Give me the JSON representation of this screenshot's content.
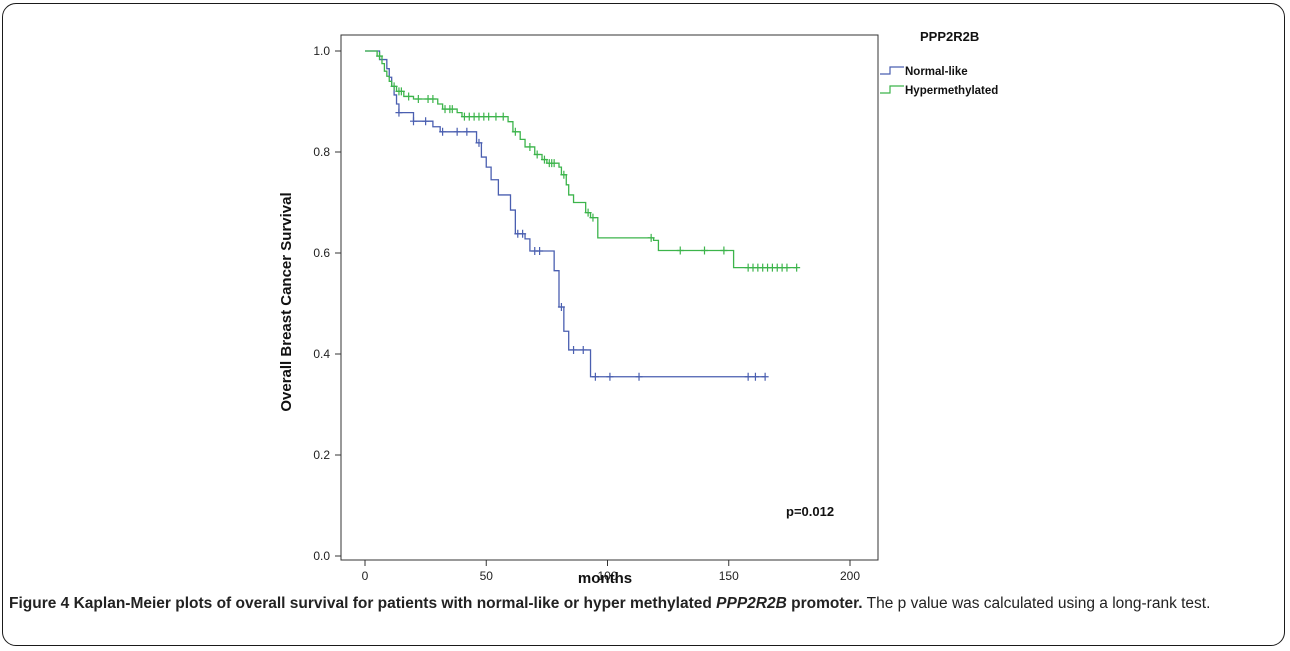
{
  "chart_data": {
    "type": "line",
    "subtype": "kaplan-meier step",
    "title": "",
    "xlabel": "months",
    "ylabel": "Overall Breast Cancer Survival",
    "xlim": [
      0,
      200
    ],
    "ylim": [
      0.0,
      1.0
    ],
    "xticks": [
      "0",
      "50",
      "100",
      "150",
      "200"
    ],
    "yticks": [
      "0.0",
      "0.2",
      "0.4",
      "0.6",
      "0.8",
      "1.0"
    ],
    "grid": false,
    "legend": {
      "title": "PPP2R2B",
      "placement": "top-right outside plot"
    },
    "annotation": "p=0.012",
    "series": [
      {
        "name": "Normal-like",
        "color": "#4a5fb0",
        "steps": [
          [
            0,
            1.0
          ],
          [
            6,
            0.983
          ],
          [
            9,
            0.965
          ],
          [
            10,
            0.948
          ],
          [
            11,
            0.93
          ],
          [
            12,
            0.913
          ],
          [
            13,
            0.895
          ],
          [
            14,
            0.878
          ],
          [
            20,
            0.861
          ],
          [
            28,
            0.85
          ],
          [
            31,
            0.84
          ],
          [
            46,
            0.818
          ],
          [
            48,
            0.79
          ],
          [
            50,
            0.77
          ],
          [
            52,
            0.745
          ],
          [
            55,
            0.715
          ],
          [
            60,
            0.685
          ],
          [
            62,
            0.638
          ],
          [
            66,
            0.628
          ],
          [
            68,
            0.604
          ],
          [
            78,
            0.565
          ],
          [
            80,
            0.493
          ],
          [
            82,
            0.445
          ],
          [
            84,
            0.408
          ],
          [
            93,
            0.355
          ]
        ],
        "end_x": 165,
        "censored": [
          [
            14,
            0.878
          ],
          [
            20,
            0.861
          ],
          [
            25,
            0.861
          ],
          [
            32,
            0.84
          ],
          [
            38,
            0.84
          ],
          [
            42,
            0.84
          ],
          [
            47,
            0.818
          ],
          [
            63,
            0.638
          ],
          [
            65,
            0.638
          ],
          [
            70,
            0.604
          ],
          [
            72,
            0.604
          ],
          [
            81,
            0.493
          ],
          [
            86,
            0.408
          ],
          [
            90,
            0.408
          ],
          [
            95,
            0.355
          ],
          [
            101,
            0.355
          ],
          [
            113,
            0.355
          ],
          [
            158,
            0.355
          ],
          [
            161,
            0.355
          ],
          [
            165,
            0.355
          ]
        ]
      },
      {
        "name": "Hypermethylated",
        "color": "#3cb44b",
        "steps": [
          [
            0,
            1.0
          ],
          [
            5,
            0.99
          ],
          [
            7,
            0.975
          ],
          [
            8,
            0.96
          ],
          [
            9,
            0.95
          ],
          [
            10,
            0.94
          ],
          [
            11,
            0.93
          ],
          [
            13,
            0.92
          ],
          [
            16,
            0.91
          ],
          [
            20,
            0.905
          ],
          [
            30,
            0.895
          ],
          [
            32,
            0.885
          ],
          [
            38,
            0.878
          ],
          [
            40,
            0.87
          ],
          [
            59,
            0.86
          ],
          [
            61,
            0.84
          ],
          [
            64,
            0.825
          ],
          [
            66,
            0.81
          ],
          [
            70,
            0.795
          ],
          [
            73,
            0.785
          ],
          [
            75,
            0.778
          ],
          [
            80,
            0.77
          ],
          [
            81,
            0.755
          ],
          [
            83,
            0.735
          ],
          [
            84,
            0.715
          ],
          [
            86,
            0.7
          ],
          [
            91,
            0.68
          ],
          [
            93,
            0.67
          ],
          [
            96,
            0.63
          ],
          [
            119,
            0.625
          ],
          [
            121,
            0.605
          ],
          [
            152,
            0.571
          ]
        ],
        "end_x": 178,
        "censored": [
          [
            6,
            0.99
          ],
          [
            12,
            0.93
          ],
          [
            14,
            0.92
          ],
          [
            15,
            0.92
          ],
          [
            18,
            0.91
          ],
          [
            22,
            0.905
          ],
          [
            26,
            0.905
          ],
          [
            28,
            0.905
          ],
          [
            33,
            0.885
          ],
          [
            35,
            0.885
          ],
          [
            36,
            0.885
          ],
          [
            41,
            0.87
          ],
          [
            43,
            0.87
          ],
          [
            45,
            0.87
          ],
          [
            47,
            0.87
          ],
          [
            49,
            0.87
          ],
          [
            51,
            0.87
          ],
          [
            54,
            0.87
          ],
          [
            57,
            0.87
          ],
          [
            62,
            0.84
          ],
          [
            68,
            0.81
          ],
          [
            71,
            0.795
          ],
          [
            74,
            0.785
          ],
          [
            76,
            0.778
          ],
          [
            77,
            0.778
          ],
          [
            78,
            0.778
          ],
          [
            82,
            0.755
          ],
          [
            92,
            0.68
          ],
          [
            94,
            0.67
          ],
          [
            118,
            0.63
          ],
          [
            130,
            0.605
          ],
          [
            140,
            0.605
          ],
          [
            148,
            0.605
          ],
          [
            158,
            0.571
          ],
          [
            160,
            0.571
          ],
          [
            162,
            0.571
          ],
          [
            164,
            0.571
          ],
          [
            166,
            0.571
          ],
          [
            168,
            0.571
          ],
          [
            170,
            0.571
          ],
          [
            172,
            0.571
          ],
          [
            174,
            0.571
          ],
          [
            178,
            0.571
          ]
        ]
      }
    ]
  },
  "caption": {
    "figure_label": "Figure 4",
    "bold_part_1": "Kaplan-Meier plots of overall survival for patients with normal-like or hyper methylated ",
    "gene_italic": "PPP2R2B",
    "bold_part_2": " promoter.",
    "rest": " The p value was calculated using a long-rank test."
  }
}
